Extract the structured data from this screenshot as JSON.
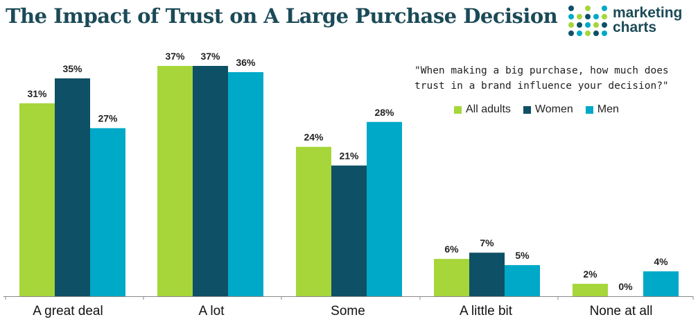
{
  "title": "The Impact of Trust on A Large Purchase Decision",
  "logo": {
    "line1": "marketing",
    "line2": "charts",
    "icon": "dot-grid-icon"
  },
  "colors": {
    "all_adults": "#a6d63a",
    "women": "#0e5066",
    "men": "#00a9c8",
    "title": "#1b4a57"
  },
  "chart_data": {
    "type": "bar",
    "question": "\"When making a big purchase, how much does trust in a brand influence your decision?\"",
    "categories": [
      "A great deal",
      "A lot",
      "Some",
      "A little bit",
      "None at all"
    ],
    "series": [
      {
        "name": "All adults",
        "values": [
          31,
          37,
          24,
          6,
          2
        ],
        "labels": [
          "31%",
          "37%",
          "24%",
          "6%",
          "2%"
        ]
      },
      {
        "name": "Women",
        "values": [
          35,
          37,
          21,
          7,
          0
        ],
        "labels": [
          "35%",
          "37%",
          "21%",
          "7%",
          "0%"
        ]
      },
      {
        "name": "Men",
        "values": [
          27,
          36,
          28,
          5,
          4
        ],
        "labels": [
          "27%",
          "36%",
          "28%",
          "5%",
          "4%"
        ]
      }
    ],
    "ylim": [
      0,
      37
    ],
    "legend": "top-right",
    "grid": false
  }
}
